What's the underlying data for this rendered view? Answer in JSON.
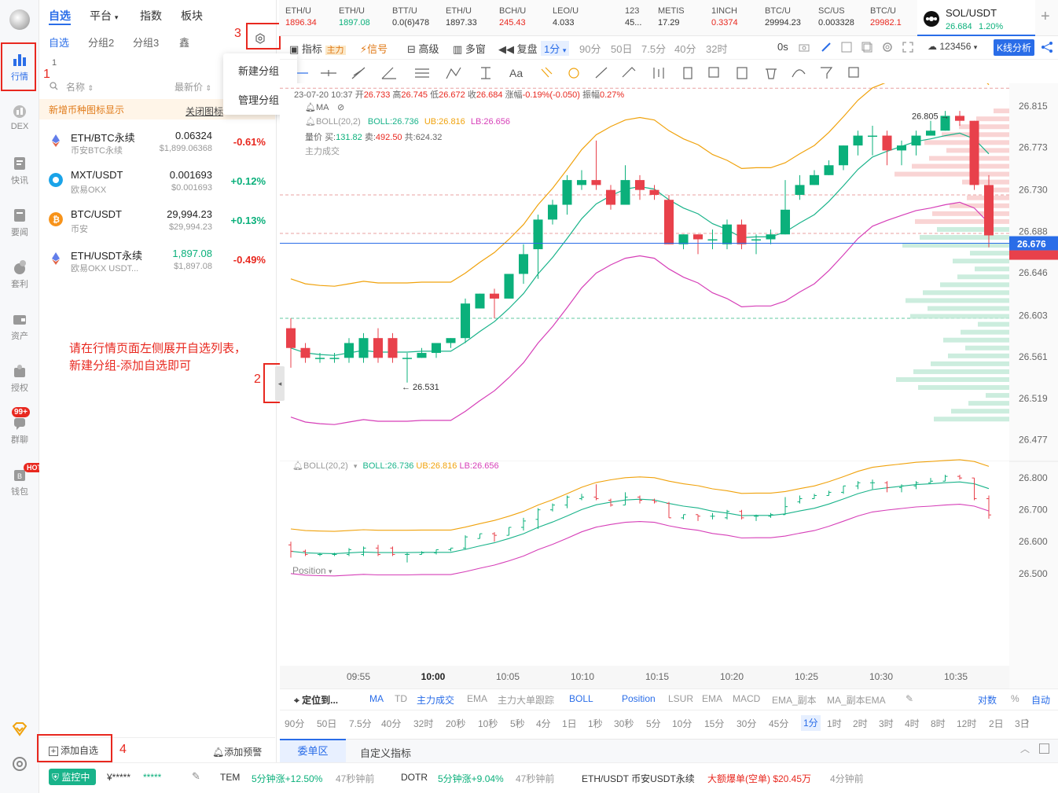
{
  "nav": [
    {
      "label": "行情",
      "icon": "bar-chart-icon",
      "active": true
    },
    {
      "label": "DEX",
      "icon": "dex-icon"
    },
    {
      "label": "快讯",
      "icon": "news-icon"
    },
    {
      "label": "要闻",
      "icon": "headline-icon"
    },
    {
      "label": "套利",
      "icon": "arbitrage-icon"
    },
    {
      "label": "资产",
      "icon": "wallet-icon"
    },
    {
      "label": "授权",
      "icon": "authorize-icon"
    },
    {
      "label": "群聊",
      "icon": "chat-icon",
      "badge": "99+"
    },
    {
      "label": "钱包",
      "icon": "wallet2-icon",
      "badge": "HOT"
    }
  ],
  "watchlist": {
    "tabs": [
      "自选",
      "平台",
      "指数",
      "板块"
    ],
    "subtabs": [
      "自选",
      "分组2",
      "分组3",
      "鑫"
    ],
    "count": "1",
    "menu": [
      "新建分组",
      "管理分组"
    ],
    "col_name": "名称",
    "col_price": "最新价",
    "notice": "新增币种图标显示",
    "notice_close": "关闭图标",
    "rows": [
      {
        "name": "ETH/BTC永续",
        "sub": "币安BTC永续",
        "price": "0.06324",
        "price2": "$1,899.06368",
        "change": "-0.61%",
        "up": false
      },
      {
        "name": "MXT/USDT",
        "sub": "欧易OKX",
        "price": "0.001693",
        "price2": "$0.001693",
        "change": "+0.12%",
        "up": true
      },
      {
        "name": "BTC/USDT",
        "sub": "币安",
        "price": "29,994.23",
        "price2": "$29,994.23",
        "change": "+0.13%",
        "up": true
      },
      {
        "name": "ETH/USDT永续",
        "sub": "欧易OKX USDT...",
        "price": "1,897.08",
        "price2": "$1,897.08",
        "change": "-0.49%",
        "up": false
      }
    ],
    "add_label": "添加自选",
    "alert_label": "添加预警"
  },
  "annotations": {
    "n1": "1",
    "n2": "2",
    "n3": "3",
    "n4": "4",
    "hint1": "请在行情页面左侧展开自选列表，",
    "hint2": "新建分组-添加自选即可"
  },
  "tickers": [
    {
      "a": "ETH/U",
      "b": "1896.34"
    },
    {
      "a": "ETH/U",
      "b": "1897.08"
    },
    {
      "a": "BTT/U",
      "b": "0.0(6)478"
    },
    {
      "a": "ETH/U",
      "b": "1897.33"
    },
    {
      "a": "BCH/U",
      "b": "245.43"
    },
    {
      "a": "LEO/U",
      "b": "4.033"
    },
    {
      "a": "123",
      "b": "45..."
    },
    {
      "a": "METIS",
      "b": "17.29"
    },
    {
      "a": "1INCH",
      "b": "0.3374"
    },
    {
      "a": "BTC/U",
      "b": "29994.23"
    },
    {
      "a": "SC/US",
      "b": "0.003328"
    },
    {
      "a": "BTC/U",
      "b": "29982.1"
    },
    {
      "a": "SOL/USDT",
      "b": "26.684",
      "c": "1.20%"
    }
  ],
  "toolbar": [
    "指标",
    "主力",
    "信号",
    "高级",
    "多窗",
    "复盘",
    "1分",
    "90分",
    "50日",
    "7.5分",
    "40分",
    "32时",
    "0s",
    "123456",
    "K线分析"
  ],
  "ohlc": {
    "date": "23-07-20 10:37",
    "o_l": "开",
    "o": "26.733",
    "h_l": "高",
    "h": "26.745",
    "l_l": "低",
    "l": "26.672",
    "c_l": "收",
    "c": "26.684",
    "chg_l": "涨幅",
    "chg": "-0.19%(-0.050)",
    "amp_l": "振幅",
    "amp": "0.27%"
  },
  "ind_main": {
    "ma": "MA",
    "boll": "BOLL(20,2)",
    "bollv": "BOLL:26.736",
    "ub": "UB:26.816",
    "lb": "LB:26.656",
    "vol_l": "量价",
    "buy_l": "买:",
    "buy": "131.82",
    "sell_l": "卖:",
    "sell": "492.50",
    "tot_l": "共:",
    "tot": "624.32",
    "main": "主力成交"
  },
  "ind_sub": {
    "boll": "BOLL(20,2)",
    "bollv": "BOLL:26.736",
    "ub": "UB:26.816",
    "lb": "LB:26.656",
    "pos": "Position"
  },
  "bottom_ind": [
    "定位到...",
    "MA",
    "TD",
    "主力成交",
    "EMA",
    "主力大单跟踪",
    "BOLL",
    "Position",
    "LSUR",
    "EMA",
    "MACD",
    "EMA_副本",
    "MA_副本EMA",
    "对数",
    "%",
    "自动"
  ],
  "periods": [
    "90分",
    "50日",
    "7.5分",
    "40分",
    "32时",
    "20秒",
    "10秒",
    "5秒",
    "4分",
    "1日",
    "1秒",
    "30秒",
    "5分",
    "10分",
    "15分",
    "30分",
    "45分",
    "1分",
    "1时",
    "2时",
    "3时",
    "4时",
    "8时",
    "12时",
    "2日",
    "3日"
  ],
  "panel_tabs": [
    "委单区",
    "自定义指标"
  ],
  "status": {
    "monitor": "监控中",
    "acct": "¥*****",
    "stars": "*****",
    "items": [
      {
        "n": "TEM",
        "v": "5分钟涨+12.50%",
        "t": "47秒钟前"
      },
      {
        "n": "DOTR",
        "v": "5分钟涨+9.04%",
        "t": "47秒钟前"
      },
      {
        "n": "ETH/USDT 币安USDT永续",
        "v": "大额爆单(空单) $20.45万",
        "t": "4分钟前"
      }
    ]
  },
  "chart_data": {
    "type": "candlestick",
    "times": [
      "09:55",
      "10:00",
      "10:05",
      "10:10",
      "10:15",
      "10:20",
      "10:25",
      "10:30",
      "10:35"
    ],
    "yticks": [
      26.815,
      26.773,
      26.73,
      26.688,
      26.646,
      26.603,
      26.561,
      26.519,
      26.477
    ],
    "ylim": [
      26.46,
      26.83
    ],
    "current": "26.676",
    "low_mark": "26.531",
    "high_mark": "26.805",
    "sub_yticks": [
      26.8,
      26.7,
      26.6,
      26.5
    ],
    "candles": [
      [
        26.59,
        26.57,
        26.6,
        26.55
      ],
      [
        26.57,
        26.56,
        26.575,
        26.555
      ],
      [
        26.56,
        26.56,
        26.565,
        26.555
      ],
      [
        26.56,
        26.56,
        26.565,
        26.555
      ],
      [
        26.56,
        26.575,
        26.58,
        26.555
      ],
      [
        26.56,
        26.58,
        26.585,
        26.555
      ],
      [
        26.58,
        26.56,
        26.59,
        26.555
      ],
      [
        26.58,
        26.56,
        26.585,
        26.555
      ],
      [
        26.56,
        26.56,
        26.565,
        26.535
      ],
      [
        26.56,
        26.565,
        26.57,
        26.56
      ],
      [
        26.565,
        26.575,
        26.575,
        26.56
      ],
      [
        26.575,
        26.58,
        26.58,
        26.57
      ],
      [
        26.58,
        26.615,
        26.62,
        26.575
      ],
      [
        26.61,
        26.625,
        26.625,
        26.61
      ],
      [
        26.625,
        26.62,
        26.63,
        26.6
      ],
      [
        26.62,
        26.645,
        26.645,
        26.62
      ],
      [
        26.645,
        26.665,
        26.675,
        26.635
      ],
      [
        26.67,
        26.7,
        26.705,
        26.64
      ],
      [
        26.7,
        26.715,
        26.72,
        26.695
      ],
      [
        26.715,
        26.74,
        26.745,
        26.705
      ],
      [
        26.735,
        26.74,
        26.75,
        26.73
      ],
      [
        26.74,
        26.735,
        26.78,
        26.73
      ],
      [
        26.73,
        26.715,
        26.735,
        26.71
      ],
      [
        26.715,
        26.74,
        26.755,
        26.715
      ],
      [
        26.74,
        26.73,
        26.745,
        26.72
      ],
      [
        26.73,
        26.725,
        26.735,
        26.72
      ],
      [
        26.72,
        26.675,
        26.725,
        26.675
      ],
      [
        26.675,
        26.685,
        26.685,
        26.67
      ],
      [
        26.685,
        26.68,
        26.685,
        26.665
      ],
      [
        26.68,
        26.68,
        26.69,
        26.67
      ],
      [
        26.675,
        26.695,
        26.7,
        26.67
      ],
      [
        26.695,
        26.675,
        26.7,
        26.67
      ],
      [
        26.68,
        26.68,
        26.685,
        26.665
      ],
      [
        26.68,
        26.685,
        26.69,
        26.675
      ],
      [
        26.685,
        26.71,
        26.74,
        26.685
      ],
      [
        26.725,
        26.735,
        26.745,
        26.72
      ],
      [
        26.735,
        26.745,
        26.75,
        26.735
      ],
      [
        26.745,
        26.755,
        26.76,
        26.745
      ],
      [
        26.755,
        26.775,
        26.775,
        26.75
      ],
      [
        26.775,
        26.785,
        26.79,
        26.765
      ],
      [
        26.785,
        26.785,
        26.795,
        26.765
      ],
      [
        26.785,
        26.77,
        26.79,
        26.755
      ],
      [
        26.77,
        26.775,
        26.78,
        26.755
      ],
      [
        26.775,
        26.785,
        26.79,
        26.765
      ],
      [
        26.785,
        26.79,
        26.8,
        26.785
      ],
      [
        26.79,
        26.805,
        26.81,
        26.79
      ],
      [
        26.805,
        26.8,
        26.81,
        26.795
      ],
      [
        26.8,
        26.735,
        26.8,
        26.73
      ],
      [
        26.735,
        26.684,
        26.745,
        26.672
      ]
    ]
  }
}
